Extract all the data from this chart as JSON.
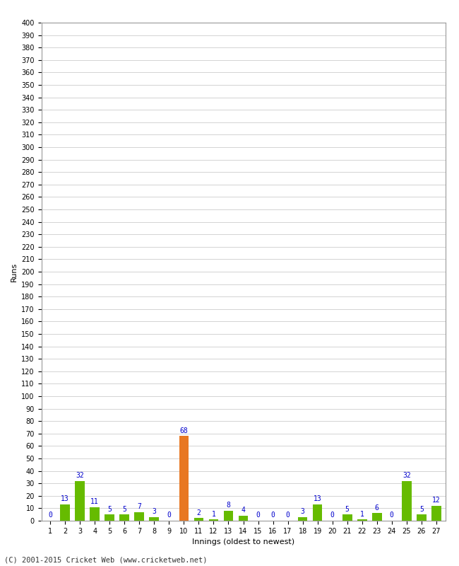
{
  "xlabel": "Innings (oldest to newest)",
  "ylabel": "Runs",
  "innings": [
    1,
    2,
    3,
    4,
    5,
    6,
    7,
    8,
    9,
    10,
    11,
    12,
    13,
    14,
    15,
    16,
    17,
    18,
    19,
    20,
    21,
    22,
    23,
    24,
    25,
    26,
    27
  ],
  "values": [
    0,
    13,
    32,
    11,
    5,
    5,
    7,
    3,
    0,
    68,
    2,
    1,
    8,
    4,
    0,
    0,
    0,
    3,
    13,
    0,
    5,
    1,
    6,
    0,
    32,
    5,
    12
  ],
  "bar_colors": [
    "#66bb00",
    "#66bb00",
    "#66bb00",
    "#66bb00",
    "#66bb00",
    "#66bb00",
    "#66bb00",
    "#66bb00",
    "#66bb00",
    "#e87722",
    "#66bb00",
    "#66bb00",
    "#66bb00",
    "#66bb00",
    "#66bb00",
    "#66bb00",
    "#66bb00",
    "#66bb00",
    "#66bb00",
    "#66bb00",
    "#66bb00",
    "#66bb00",
    "#66bb00",
    "#66bb00",
    "#66bb00",
    "#66bb00",
    "#66bb00"
  ],
  "ylim": [
    0,
    400
  ],
  "label_color": "#0000cc",
  "background_color": "#ffffff",
  "grid_color": "#cccccc",
  "footer": "(C) 2001-2015 Cricket Web (www.cricketweb.net)",
  "show_title": false
}
